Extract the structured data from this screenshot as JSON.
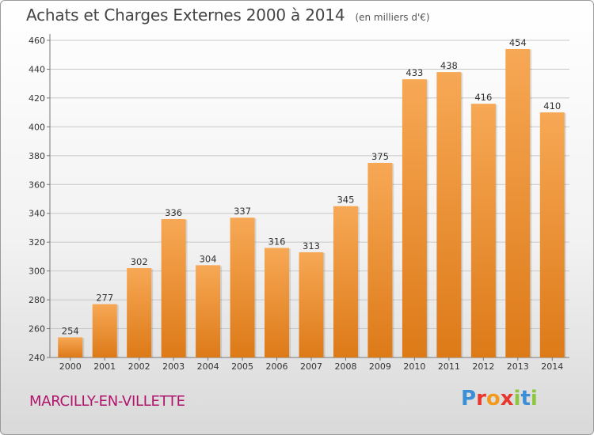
{
  "header": {
    "title": "Achats et Charges Externes 2000 à 2014",
    "unit": "(en milliers d'€)"
  },
  "footer": {
    "city": "MARCILLY-EN-VILLETTE",
    "logo_text": "Proxiti",
    "logo_colors": [
      "#3a8fd6",
      "#e8372c",
      "#f39a1e",
      "#e8372c",
      "#8dc63f",
      "#3a8fd6",
      "#8dc63f"
    ]
  },
  "colors": {
    "bar_light": "#f7a855",
    "bar_dark": "#dd7a18",
    "grid": "#c8c8c8"
  },
  "chart_data": {
    "type": "bar",
    "title": "Achats et Charges Externes 2000 à 2014",
    "subtitle": "(en milliers d'€)",
    "categories": [
      "2000",
      "2001",
      "2002",
      "2003",
      "2004",
      "2005",
      "2006",
      "2007",
      "2008",
      "2009",
      "2010",
      "2011",
      "2012",
      "2013",
      "2014"
    ],
    "values": [
      254,
      277,
      302,
      336,
      304,
      337,
      316,
      313,
      345,
      375,
      433,
      438,
      416,
      454,
      410
    ],
    "ylim": [
      240,
      460
    ],
    "yticks": [
      240,
      260,
      280,
      300,
      320,
      340,
      360,
      380,
      400,
      420,
      440,
      460
    ],
    "grid": true,
    "xlabel": "",
    "ylabel": ""
  }
}
